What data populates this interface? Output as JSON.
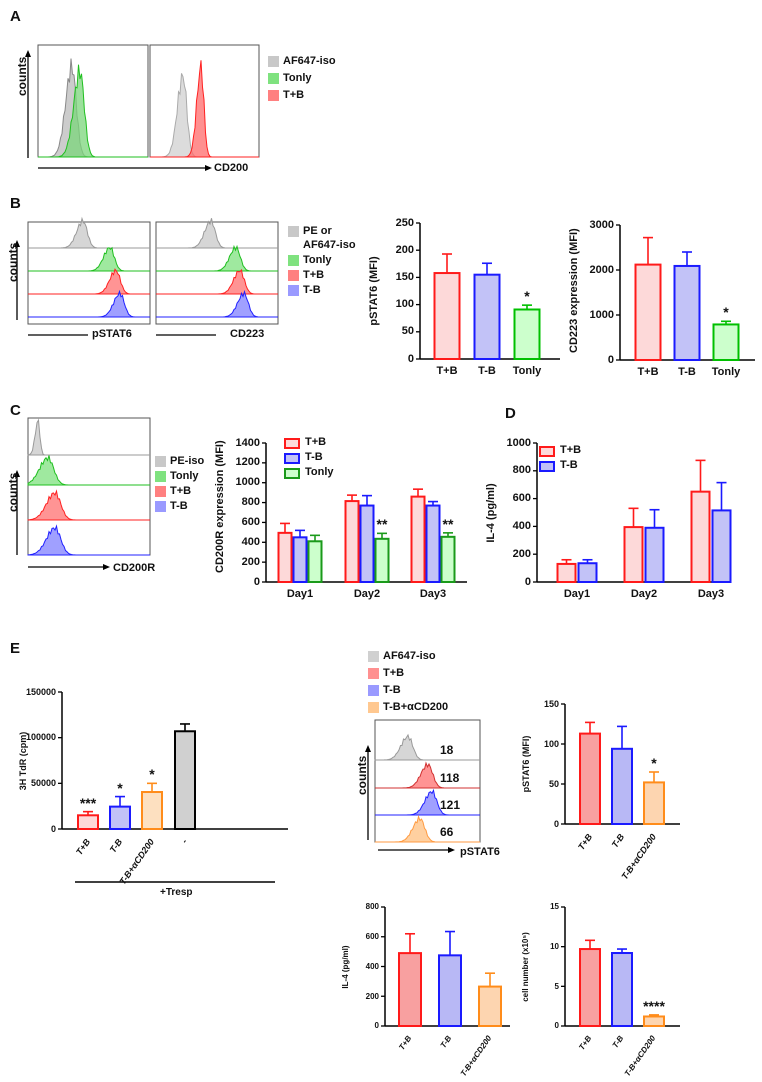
{
  "panels": {
    "A": "A",
    "B": "B",
    "C": "C",
    "D": "D",
    "E": "E"
  },
  "flow": {
    "counts": "counts",
    "A": {
      "xlabel": "CD200",
      "legend": [
        "AF647-iso",
        "Tonly",
        "T+B"
      ]
    },
    "B": {
      "xlabels": [
        "pSTAT6",
        "CD223"
      ],
      "legend": [
        "PE or",
        "AF647-iso",
        "Tonly",
        "T+B",
        "T-B"
      ]
    },
    "C": {
      "xlabel": "CD200R",
      "legend": [
        "PE-iso",
        "Tonly",
        "T+B",
        "T-B"
      ]
    },
    "E": {
      "xlabel": "pSTAT6",
      "legend": [
        "AF647-iso",
        "T+B",
        "T-B",
        "T-B+αCD200"
      ],
      "mfi": [
        "18",
        "118",
        "121",
        "66"
      ]
    }
  },
  "tresp_label": "+Tresp",
  "colors": {
    "red": "#ff1a1a",
    "blue": "#1a1aff",
    "green": "#00c000",
    "darkgreen": "#1a9a1a",
    "orange": "#ff8c1a",
    "gray": "#c8c8c8"
  },
  "chart_data": [
    {
      "id": "B-pSTAT6",
      "type": "bar",
      "ylabel": "pSTAT6 (MFI)",
      "ylim": [
        0,
        250
      ],
      "yticks": [
        0,
        50,
        100,
        150,
        200,
        250
      ],
      "categories": [
        "T+B",
        "T-B",
        "Tonly"
      ],
      "values": [
        158,
        155,
        91
      ],
      "errors": [
        35,
        21,
        8
      ],
      "sig": [
        "",
        "",
        "*"
      ]
    },
    {
      "id": "B-CD223",
      "type": "bar",
      "ylabel": "CD223 expression (MFI)",
      "ylim": [
        0,
        3000
      ],
      "yticks": [
        0,
        1000,
        2000,
        3000
      ],
      "categories": [
        "T+B",
        "T-B",
        "Tonly"
      ],
      "values": [
        2120,
        2090,
        790
      ],
      "errors": [
        600,
        310,
        70
      ],
      "sig": [
        "",
        "",
        "*"
      ]
    },
    {
      "id": "C-CD200R",
      "type": "bar",
      "ylabel": "CD200R expression (MFI)",
      "ylim": [
        0,
        1400
      ],
      "yticks": [
        0,
        200,
        400,
        600,
        800,
        1000,
        1200,
        1400
      ],
      "categories": [
        "Day1",
        "Day2",
        "Day3"
      ],
      "series": [
        {
          "name": "T+B",
          "values": [
            495,
            815,
            860
          ],
          "errors": [
            95,
            60,
            75
          ]
        },
        {
          "name": "T-B",
          "values": [
            450,
            770,
            770
          ],
          "errors": [
            70,
            100,
            40
          ]
        },
        {
          "name": "Tonly",
          "values": [
            410,
            435,
            455
          ],
          "errors": [
            60,
            55,
            40
          ],
          "sig": [
            "",
            "**",
            "**"
          ]
        }
      ]
    },
    {
      "id": "D-IL4",
      "type": "bar",
      "ylabel": "IL-4 (pg/ml)",
      "ylim": [
        0,
        1000
      ],
      "yticks": [
        0,
        200,
        400,
        600,
        800,
        1000
      ],
      "categories": [
        "Day1",
        "Day2",
        "Day3"
      ],
      "series": [
        {
          "name": "T+B",
          "values": [
            130,
            395,
            650
          ],
          "errors": [
            30,
            135,
            225
          ]
        },
        {
          "name": "T-B",
          "values": [
            135,
            390,
            515
          ],
          "errors": [
            25,
            130,
            200
          ]
        }
      ]
    },
    {
      "id": "E-TdR",
      "type": "bar",
      "ylabel": "3H TdR (cpm)",
      "ylim": [
        0,
        150000
      ],
      "yticks": [
        0,
        50000,
        100000,
        150000
      ],
      "categories": [
        "T+B",
        "T-B",
        "T-B+αCD200",
        "-"
      ],
      "values": [
        15000,
        24500,
        40500,
        107000
      ],
      "errors": [
        4000,
        11000,
        9500,
        8000
      ],
      "sig": [
        "***",
        "*",
        "*",
        ""
      ]
    },
    {
      "id": "E-pSTAT6",
      "type": "bar",
      "ylabel": "pSTAT6 (MFI)",
      "ylim": [
        0,
        150
      ],
      "yticks": [
        0,
        50,
        100,
        150
      ],
      "categories": [
        "T+B",
        "T-B",
        "T-B+αCD200"
      ],
      "values": [
        113,
        94,
        52
      ],
      "errors": [
        14,
        28,
        13
      ],
      "sig": [
        "",
        "",
        "*"
      ]
    },
    {
      "id": "E-IL4",
      "type": "bar",
      "ylabel": "IL-4 (pg/ml)",
      "ylim": [
        0,
        800
      ],
      "yticks": [
        0,
        200,
        400,
        600,
        800
      ],
      "categories": [
        "T+B",
        "T-B",
        "T-B+αCD200"
      ],
      "values": [
        490,
        475,
        265
      ],
      "errors": [
        130,
        160,
        90
      ],
      "sig": [
        "",
        "",
        ""
      ]
    },
    {
      "id": "E-cellnumber",
      "type": "bar",
      "ylabel": "cell number (x10⁵)",
      "ylim": [
        0,
        15
      ],
      "yticks": [
        0,
        5,
        10,
        15
      ],
      "categories": [
        "T+B",
        "T-B",
        "T-B+αCD200"
      ],
      "values": [
        9.7,
        9.2,
        1.2
      ],
      "errors": [
        1.1,
        0.5,
        0.2
      ],
      "sig": [
        "",
        "",
        "****"
      ]
    }
  ]
}
